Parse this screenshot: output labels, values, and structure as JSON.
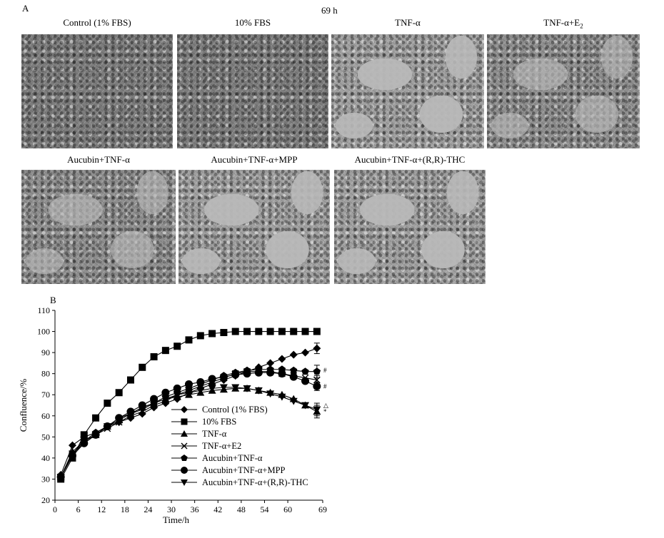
{
  "panel_a": {
    "letter": "A",
    "time": "69 h",
    "images": [
      {
        "label": "Control (1% FBS)",
        "density": "dense"
      },
      {
        "label": "10% FBS",
        "density": "dense"
      },
      {
        "label": "TNF-α",
        "density": "sparse"
      },
      {
        "label": "TNF-α+E",
        "label_sub": "2",
        "density": "mid"
      },
      {
        "label": "Aucubin+TNF-α",
        "density": "mid"
      },
      {
        "label": "Aucubin+TNF-α+MPP",
        "density": "sparse"
      },
      {
        "label": "Aucubin+TNF-α+(R,R)-THC",
        "density": "sparse"
      }
    ]
  },
  "panel_b": {
    "letter": "B",
    "chart_data": {
      "type": "line",
      "title": "",
      "xlabel": "Time/h",
      "ylabel": "Confluence/%",
      "xlim": [
        0,
        69
      ],
      "ylim": [
        20,
        110
      ],
      "xticks": [
        0,
        6,
        12,
        18,
        24,
        30,
        36,
        42,
        48,
        54,
        60,
        69
      ],
      "yticks": [
        20,
        30,
        40,
        50,
        60,
        70,
        80,
        90,
        100,
        110
      ],
      "legend_position": "lower-center",
      "grid": false,
      "series": [
        {
          "name": "Control (1% FBS)",
          "marker": "diamond",
          "x": [
            1.5,
            4.5,
            7.5,
            10.5,
            13.5,
            16.5,
            19.5,
            22.5,
            25.5,
            28.5,
            31.5,
            34.5,
            37.5,
            40.5,
            43.5,
            46.5,
            49.5,
            52.5,
            55.5,
            58.5,
            61.5,
            64.5,
            67.5
          ],
          "y": [
            32,
            46,
            50,
            52,
            55,
            57,
            59,
            61,
            64,
            66,
            68,
            71,
            73,
            75,
            77,
            79,
            81,
            83,
            85,
            87,
            89,
            90,
            92
          ],
          "end_error": 2.5
        },
        {
          "name": "10% FBS",
          "marker": "square",
          "x": [
            1.5,
            4.5,
            7.5,
            10.5,
            13.5,
            16.5,
            19.5,
            22.5,
            25.5,
            28.5,
            31.5,
            34.5,
            37.5,
            40.5,
            43.5,
            46.5,
            49.5,
            52.5,
            55.5,
            58.5,
            61.5,
            64.5,
            67.5
          ],
          "y": [
            30,
            40,
            51,
            59,
            66,
            71,
            77,
            83,
            88,
            91,
            93,
            96,
            98,
            99,
            99.5,
            100,
            100,
            100,
            100,
            100,
            100,
            100,
            100
          ],
          "end_error": 0
        },
        {
          "name": "TNF-α",
          "marker": "triangle",
          "x": [
            1.5,
            4.5,
            7.5,
            10.5,
            13.5,
            16.5,
            19.5,
            22.5,
            25.5,
            28.5,
            31.5,
            34.5,
            37.5,
            40.5,
            43.5,
            46.5,
            49.5,
            52.5,
            55.5,
            58.5,
            61.5,
            64.5,
            67.5
          ],
          "y": [
            31,
            43,
            48,
            51,
            55,
            58,
            61,
            64,
            66,
            68,
            69,
            70,
            71,
            72,
            72.5,
            73,
            73,
            72,
            71,
            70,
            68,
            65,
            62
          ],
          "end_error": 3
        },
        {
          "name": "TNF-α+E2",
          "marker": "x",
          "x": [
            1.5,
            4.5,
            7.5,
            10.5,
            13.5,
            16.5,
            19.5,
            22.5,
            25.5,
            28.5,
            31.5,
            34.5,
            37.5,
            40.5,
            43.5,
            46.5,
            49.5,
            52.5,
            55.5,
            58.5,
            61.5,
            64.5,
            67.5
          ],
          "y": [
            31,
            42,
            48,
            51,
            54,
            57,
            60,
            62,
            65,
            67,
            70,
            72,
            74,
            76,
            78,
            80,
            81,
            81,
            81,
            80,
            79,
            78,
            77
          ],
          "end_error": 2
        },
        {
          "name": "Aucubin+TNF-α",
          "marker": "pentagon",
          "x": [
            1.5,
            4.5,
            7.5,
            10.5,
            13.5,
            16.5,
            19.5,
            22.5,
            25.5,
            28.5,
            31.5,
            34.5,
            37.5,
            40.5,
            43.5,
            46.5,
            49.5,
            52.5,
            55.5,
            58.5,
            61.5,
            64.5,
            67.5
          ],
          "y": [
            31,
            42,
            48,
            52,
            55,
            59,
            61,
            64,
            66,
            69,
            71,
            73,
            75,
            77,
            79,
            80.5,
            81.5,
            82,
            82,
            82,
            81.5,
            81,
            81
          ],
          "end_error": 3
        },
        {
          "name": "Aucubin+TNF-α+MPP",
          "marker": "circle",
          "x": [
            1.5,
            4.5,
            7.5,
            10.5,
            13.5,
            16.5,
            19.5,
            22.5,
            25.5,
            28.5,
            31.5,
            34.5,
            37.5,
            40.5,
            43.5,
            46.5,
            49.5,
            52.5,
            55.5,
            58.5,
            61.5,
            64.5,
            67.5
          ],
          "y": [
            31,
            41,
            47,
            51,
            55,
            59,
            62,
            65,
            68,
            71,
            73,
            75,
            76,
            77.5,
            78.5,
            79.5,
            80,
            80.5,
            80.5,
            80,
            78.5,
            76.5,
            74
          ],
          "end_error": 2
        },
        {
          "name": "Aucubin+TNF-α+(R,R)-THC",
          "marker": "triangle-down",
          "x": [
            1.5,
            4.5,
            7.5,
            10.5,
            13.5,
            16.5,
            19.5,
            22.5,
            25.5,
            28.5,
            31.5,
            34.5,
            37.5,
            40.5,
            43.5,
            46.5,
            49.5,
            52.5,
            55.5,
            58.5,
            61.5,
            64.5,
            67.5
          ],
          "y": [
            31,
            42,
            47,
            51,
            55,
            58,
            61,
            63,
            66,
            68,
            70,
            71,
            72,
            73,
            73.5,
            73.5,
            73,
            72,
            70.5,
            69,
            67,
            65,
            63
          ],
          "end_error": 3
        }
      ],
      "annotations": [
        {
          "text": "#",
          "x": 69,
          "y": 81.5
        },
        {
          "text": "#",
          "x": 69,
          "y": 74
        },
        {
          "text": "△",
          "x": 69,
          "y": 65
        },
        {
          "text": "*",
          "x": 69,
          "y": 62
        }
      ]
    }
  }
}
